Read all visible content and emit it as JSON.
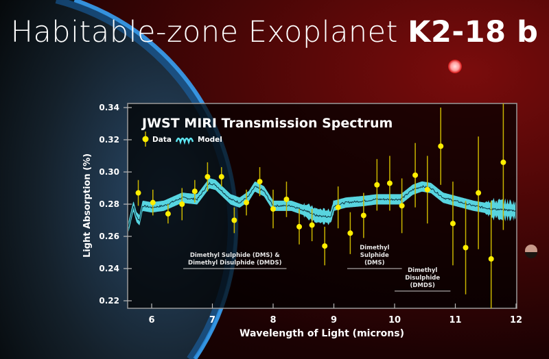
{
  "title": {
    "main": "Habitable-zone Exoplanet",
    "bold": "K2-18 b"
  },
  "colors": {
    "data": "#ffee00",
    "errorbar": "#c8b400",
    "model": "#5ee6f2",
    "model_line": "#0b3440",
    "text": "#ffffff"
  },
  "chart_data": {
    "type": "scatter",
    "title": "JWST MIRI Transmission Spectrum",
    "xlabel": "Wavelength of Light (microns)",
    "ylabel": "Light Absorption (%)",
    "xlim": [
      5.6,
      12
    ],
    "ylim": [
      0.215,
      0.343
    ],
    "xticks": [
      6,
      7,
      8,
      9,
      10,
      11,
      12
    ],
    "yticks": [
      0.22,
      0.24,
      0.26,
      0.28,
      0.3,
      0.32,
      0.34
    ],
    "ytick_labels": [
      "0.22",
      "0.24",
      "0.26",
      "0.28",
      "0.30",
      "0.32",
      "0.34"
    ],
    "grid": false,
    "legend": {
      "placement": "top-left",
      "entries": [
        "Data",
        "Model"
      ]
    },
    "series": [
      {
        "name": "Data",
        "type": "errorbar",
        "x": [
          5.78,
          6.02,
          6.27,
          6.5,
          6.71,
          6.92,
          7.15,
          7.36,
          7.56,
          7.78,
          8.0,
          8.22,
          8.43,
          8.64,
          8.85,
          9.07,
          9.27,
          9.49,
          9.71,
          9.92,
          10.12,
          10.34,
          10.54,
          10.76,
          10.96,
          11.17,
          11.38,
          11.59,
          11.79
        ],
        "y": [
          0.287,
          0.281,
          0.274,
          0.28,
          0.288,
          0.297,
          0.297,
          0.27,
          0.281,
          0.294,
          0.277,
          0.283,
          0.266,
          0.267,
          0.254,
          0.278,
          0.262,
          0.273,
          0.292,
          0.293,
          0.279,
          0.298,
          0.289,
          0.316,
          0.268,
          0.253,
          0.287,
          0.246,
          0.306
        ],
        "yerr": [
          0.008,
          0.008,
          0.006,
          0.01,
          0.007,
          0.009,
          0.006,
          0.008,
          0.008,
          0.009,
          0.012,
          0.011,
          0.011,
          0.01,
          0.012,
          0.013,
          0.013,
          0.014,
          0.016,
          0.017,
          0.017,
          0.02,
          0.021,
          0.024,
          0.026,
          0.029,
          0.035,
          0.036,
          0.042
        ]
      },
      {
        "name": "Model",
        "type": "band",
        "x": [
          5.62,
          5.7,
          5.75,
          5.8,
          5.85,
          6.0,
          6.2,
          6.5,
          6.75,
          6.95,
          7.05,
          7.3,
          7.45,
          7.6,
          7.7,
          7.85,
          8.0,
          8.3,
          8.6,
          8.7,
          8.95,
          9.0,
          9.2,
          9.5,
          9.7,
          10.1,
          10.3,
          10.45,
          10.6,
          10.8,
          11.0,
          11.3,
          11.6,
          12.0
        ],
        "y": [
          0.266,
          0.279,
          0.272,
          0.27,
          0.279,
          0.278,
          0.279,
          0.284,
          0.283,
          0.293,
          0.292,
          0.283,
          0.281,
          0.285,
          0.291,
          0.288,
          0.279,
          0.279,
          0.275,
          0.273,
          0.272,
          0.279,
          0.281,
          0.282,
          0.283,
          0.283,
          0.289,
          0.291,
          0.29,
          0.284,
          0.282,
          0.279,
          0.277,
          0.276
        ]
      }
    ],
    "annotations": [
      {
        "lines": [
          "Dimethyl Sulphide (DMS) &",
          "Dimethyl Disulphide (DMDS)"
        ],
        "x_range": [
          6.52,
          8.22
        ],
        "y": 0.24
      },
      {
        "lines": [
          "Dimethyl",
          "Sulphide",
          "(DMS)"
        ],
        "x_range": [
          9.22,
          10.12
        ],
        "y": 0.24
      },
      {
        "lines": [
          "Dimethyl",
          "Disulphide",
          "(DMDS)"
        ],
        "x_range": [
          10.0,
          10.92
        ],
        "y": 0.226
      }
    ]
  }
}
